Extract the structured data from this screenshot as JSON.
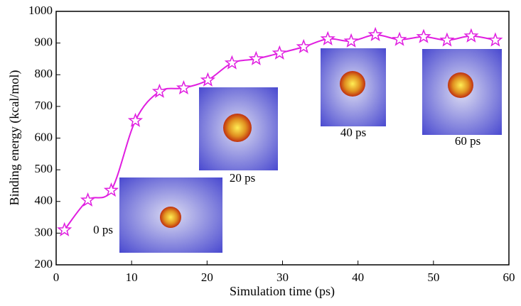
{
  "chart_data": {
    "type": "line",
    "x_label": "Simulation time (ps)",
    "y_label": "Binding energy (kcal/mol)",
    "xlim": [
      0,
      60
    ],
    "xticks": [
      0,
      10,
      20,
      30,
      40,
      50,
      60
    ],
    "ylim": [
      200,
      1000
    ],
    "yticks": [
      200,
      300,
      400,
      500,
      600,
      700,
      800,
      900,
      1000
    ],
    "series": [
      {
        "color": "#e01ee0",
        "x": [
          1.1,
          4.2,
          7.3,
          10.5,
          13.7,
          16.9,
          20.1,
          23.3,
          26.5,
          29.6,
          32.8,
          36.0,
          39.1,
          42.3,
          45.5,
          48.7,
          51.8,
          55.0,
          58.2
        ],
        "values": [
          310,
          404,
          435,
          655,
          747,
          758,
          783,
          837,
          850,
          868,
          888,
          913,
          906,
          926,
          911,
          920,
          909,
          922,
          909
        ]
      }
    ],
    "annotations": [
      "0 ps",
      "20 ps",
      "40 ps",
      "60 ps"
    ]
  }
}
